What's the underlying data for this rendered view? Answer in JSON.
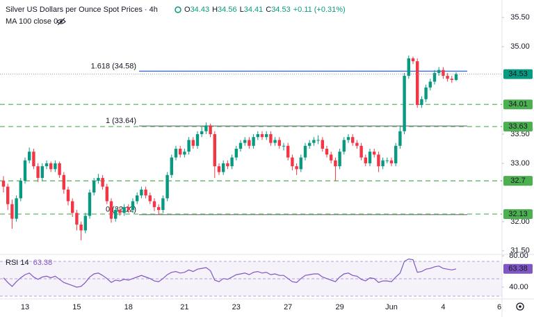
{
  "chart_data": {
    "type": "candlestick",
    "title": "Silver US Dollars per Ounce Spot Prices · 4h",
    "ohlc_prefixes": [
      "O",
      "H",
      "L",
      "C"
    ],
    "change": "+0.11",
    "change_pct": "(+0.31%)",
    "indicator_label": "MA 100 close 0",
    "up_color": "#089981",
    "down_color": "#f23645",
    "categories": [
      null,
      null,
      null,
      null,
      null,
      "13",
      null,
      null,
      null,
      null,
      null,
      null,
      null,
      null,
      null,
      null,
      null,
      "15",
      null,
      null,
      null,
      null,
      null,
      null,
      null,
      null,
      null,
      null,
      null,
      "18",
      null,
      null,
      null,
      null,
      null,
      null,
      null,
      null,
      null,
      null,
      null,
      null,
      "21",
      null,
      null,
      null,
      null,
      null,
      null,
      null,
      null,
      null,
      null,
      null,
      "23",
      null,
      null,
      null,
      null,
      null,
      null,
      null,
      null,
      null,
      null,
      null,
      "27",
      null,
      null,
      null,
      null,
      null,
      null,
      null,
      null,
      null,
      null,
      null,
      "29",
      null,
      null,
      null,
      null,
      null,
      null,
      null,
      null,
      null,
      null,
      null,
      "Jun",
      null,
      null,
      null,
      null,
      null,
      null,
      null,
      null,
      null,
      null,
      null,
      "4",
      null,
      null,
      null,
      null,
      null,
      null,
      null,
      null,
      null,
      null,
      null,
      null,
      "6"
    ],
    "open": [
      32.7,
      32.6,
      32.3,
      32.05,
      32.4,
      32.7,
      33.05,
      33.2,
      32.95,
      32.75,
      32.95,
      33.0,
      32.9,
      33.0,
      32.8,
      32.55,
      32.35,
      32.15,
      31.95,
      31.85,
      32.1,
      32.5,
      32.7,
      32.75,
      32.6,
      32.35,
      32.05,
      32.2,
      32.15,
      32.25,
      32.2,
      32.35,
      32.45,
      32.55,
      32.45,
      32.35,
      32.25,
      32.2,
      32.4,
      32.8,
      33.1,
      33.25,
      33.15,
      33.2,
      33.4,
      33.3,
      33.5,
      33.55,
      33.65,
      33.5,
      32.95,
      32.85,
      33.0,
      32.95,
      33.1,
      33.25,
      33.35,
      33.4,
      33.3,
      33.45,
      33.5,
      33.45,
      33.5,
      33.35,
      33.4,
      33.3,
      33.3,
      33.1,
      32.95,
      32.9,
      33.1,
      33.3,
      33.35,
      33.4,
      33.4,
      33.25,
      33.15,
      33.05,
      32.95,
      33.2,
      33.4,
      33.45,
      33.35,
      33.3,
      33.1,
      33.0,
      33.2,
      33.15,
      32.95,
      33.05,
      33.05,
      33.0,
      33.3,
      33.55,
      34.5,
      34.8,
      34.75,
      34.0,
      34.1,
      34.3,
      34.4,
      34.55,
      34.6,
      34.5,
      34.45,
      34.43,
      null,
      null,
      null,
      null,
      null,
      null,
      null,
      null,
      null,
      null
    ],
    "high": [
      32.78,
      32.65,
      32.38,
      32.45,
      32.75,
      33.1,
      33.27,
      33.25,
      33.0,
      33.0,
      33.05,
      33.03,
      33.05,
      33.03,
      32.85,
      32.6,
      32.4,
      32.2,
      32.0,
      32.15,
      32.55,
      32.75,
      32.82,
      32.8,
      32.65,
      32.4,
      32.25,
      32.25,
      32.3,
      32.3,
      32.4,
      32.5,
      32.6,
      32.6,
      32.5,
      32.4,
      32.3,
      32.45,
      32.85,
      33.15,
      33.3,
      33.3,
      33.25,
      33.45,
      33.45,
      33.55,
      33.62,
      33.7,
      33.68,
      33.55,
      33.0,
      33.05,
      33.05,
      33.15,
      33.3,
      33.4,
      33.45,
      33.45,
      33.5,
      33.55,
      33.55,
      33.55,
      33.55,
      33.45,
      33.45,
      33.35,
      33.35,
      33.15,
      33.0,
      33.15,
      33.35,
      33.4,
      33.45,
      33.48,
      33.45,
      33.3,
      33.2,
      33.1,
      33.25,
      33.45,
      33.5,
      33.5,
      33.4,
      33.35,
      33.15,
      33.25,
      33.25,
      33.2,
      33.1,
      33.1,
      33.1,
      33.35,
      33.65,
      34.55,
      34.85,
      34.83,
      34.8,
      34.15,
      34.35,
      34.45,
      34.6,
      34.65,
      34.65,
      34.55,
      34.5,
      34.56,
      null,
      null,
      null,
      null,
      null,
      null,
      null,
      null,
      null,
      null
    ],
    "low": [
      32.5,
      32.2,
      31.88,
      32.0,
      32.35,
      32.65,
      33.0,
      32.9,
      32.68,
      32.7,
      32.9,
      32.85,
      32.85,
      32.75,
      32.48,
      32.28,
      32.08,
      31.85,
      31.68,
      31.8,
      32.05,
      32.45,
      32.65,
      32.55,
      32.3,
      31.98,
      32.0,
      32.1,
      32.1,
      32.15,
      32.15,
      32.3,
      32.4,
      32.4,
      32.3,
      32.18,
      32.12,
      32.15,
      32.35,
      32.75,
      33.05,
      33.1,
      33.1,
      33.15,
      33.25,
      33.25,
      33.45,
      33.5,
      33.45,
      32.75,
      32.8,
      32.8,
      32.9,
      32.9,
      33.05,
      33.2,
      33.3,
      33.25,
      33.25,
      33.4,
      33.4,
      33.4,
      33.3,
      33.3,
      33.25,
      33.22,
      33.05,
      32.88,
      32.8,
      32.85,
      33.05,
      33.25,
      33.3,
      33.33,
      33.2,
      33.1,
      33.0,
      32.7,
      32.9,
      33.15,
      33.35,
      33.3,
      33.25,
      33.05,
      32.95,
      32.95,
      33.1,
      32.85,
      32.9,
      33.0,
      32.95,
      32.95,
      33.25,
      33.5,
      34.45,
      34.7,
      33.95,
      33.95,
      34.05,
      34.25,
      34.35,
      34.5,
      34.45,
      34.4,
      34.38,
      34.41,
      null,
      null,
      null,
      null,
      null,
      null,
      null,
      null,
      null,
      null
    ],
    "close": [
      32.6,
      32.3,
      32.05,
      32.4,
      32.7,
      33.05,
      33.2,
      32.95,
      32.75,
      32.95,
      33.0,
      32.9,
      33.0,
      32.8,
      32.55,
      32.35,
      32.15,
      31.95,
      31.85,
      32.1,
      32.5,
      32.7,
      32.75,
      32.6,
      32.35,
      32.05,
      32.2,
      32.15,
      32.25,
      32.2,
      32.35,
      32.45,
      32.55,
      32.45,
      32.35,
      32.25,
      32.2,
      32.4,
      32.8,
      33.1,
      33.25,
      33.15,
      33.2,
      33.4,
      33.3,
      33.5,
      33.55,
      33.65,
      33.5,
      32.95,
      32.85,
      33.0,
      32.95,
      33.1,
      33.25,
      33.35,
      33.4,
      33.3,
      33.45,
      33.5,
      33.45,
      33.5,
      33.35,
      33.4,
      33.3,
      33.3,
      33.1,
      32.95,
      32.9,
      33.1,
      33.3,
      33.35,
      33.4,
      33.4,
      33.25,
      33.15,
      33.05,
      32.95,
      33.2,
      33.4,
      33.45,
      33.35,
      33.3,
      33.1,
      33.0,
      33.2,
      33.15,
      32.95,
      33.05,
      33.05,
      33.0,
      33.3,
      33.55,
      34.5,
      34.8,
      34.75,
      34.0,
      34.1,
      34.3,
      34.4,
      34.55,
      34.6,
      34.5,
      34.45,
      34.43,
      34.53,
      null,
      null,
      null,
      null,
      null,
      null,
      null,
      null,
      null,
      null
    ],
    "ylim": [
      31.45,
      35.8
    ],
    "yticks": [
      {
        "value": 35.5,
        "label": "35.50"
      },
      {
        "value": 35,
        "label": "35.00"
      },
      {
        "value": 33.5,
        "label": "33.50"
      },
      {
        "value": 33,
        "label": "33.00"
      },
      {
        "value": 32,
        "label": "32.00"
      },
      {
        "value": 31.5,
        "label": "31.50"
      }
    ],
    "levels_color": "#4caf50",
    "levels": [
      34.01,
      33.63,
      32.7,
      32.13
    ],
    "fib_levels": [
      {
        "label": "1.618 (34.58)",
        "value": 34.58,
        "color": "#2962ff"
      },
      {
        "label": "1 (33.64)",
        "value": 33.64,
        "color": "#787b86"
      },
      {
        "label": "0 (32.12)",
        "value": 32.12,
        "color": "#787b86"
      }
    ],
    "rsi": {
      "label": "RSI 14",
      "color": "#7e57c2",
      "ylim": [
        25,
        82.7
      ],
      "yticks": [
        {
          "value": 80,
          "label": "80.00"
        },
        {
          "value": 40,
          "label": "40.00"
        }
      ],
      "values": [
        52,
        46,
        41,
        47,
        52,
        56,
        58,
        53,
        50,
        53,
        54,
        52,
        54,
        50,
        46,
        44,
        42,
        40,
        41,
        46,
        53,
        57,
        58,
        55,
        51,
        46,
        49,
        48,
        50,
        49,
        51,
        53,
        55,
        53,
        51,
        48,
        47,
        51,
        56,
        59,
        60,
        58,
        59,
        62,
        60,
        63,
        64,
        65,
        61,
        49,
        47,
        51,
        50,
        53,
        56,
        57,
        58,
        56,
        59,
        60,
        58,
        59,
        56,
        57,
        55,
        55,
        51,
        47,
        46,
        51,
        55,
        56,
        57,
        57,
        53,
        51,
        49,
        47,
        53,
        57,
        58,
        55,
        54,
        50,
        48,
        52,
        51,
        46,
        48,
        48,
        47,
        53,
        58,
        73,
        76,
        75,
        59,
        60,
        63,
        64,
        66,
        67,
        64,
        63,
        62,
        63.38,
        null,
        null,
        null,
        null,
        null,
        null,
        null,
        null,
        null,
        null
      ]
    }
  }
}
